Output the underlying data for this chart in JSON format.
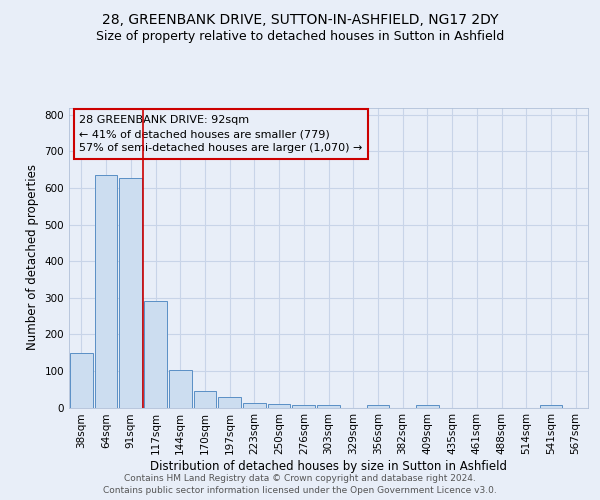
{
  "title1": "28, GREENBANK DRIVE, SUTTON-IN-ASHFIELD, NG17 2DY",
  "title2": "Size of property relative to detached houses in Sutton in Ashfield",
  "xlabel": "Distribution of detached houses by size in Sutton in Ashfield",
  "ylabel": "Number of detached properties",
  "categories": [
    "38sqm",
    "64sqm",
    "91sqm",
    "117sqm",
    "144sqm",
    "170sqm",
    "197sqm",
    "223sqm",
    "250sqm",
    "276sqm",
    "303sqm",
    "329sqm",
    "356sqm",
    "382sqm",
    "409sqm",
    "435sqm",
    "461sqm",
    "488sqm",
    "514sqm",
    "541sqm",
    "567sqm"
  ],
  "values": [
    150,
    635,
    628,
    290,
    103,
    45,
    30,
    13,
    10,
    8,
    8,
    0,
    8,
    0,
    8,
    0,
    0,
    0,
    0,
    8,
    0
  ],
  "bar_color": "#ccddf0",
  "bar_edge_color": "#5a8fc5",
  "grid_color": "#c8d4e8",
  "background_color": "#e8eef8",
  "annotation_text": "28 GREENBANK DRIVE: 92sqm\n← 41% of detached houses are smaller (779)\n57% of semi-detached houses are larger (1,070) →",
  "annotation_box_color": "#cc0000",
  "vline_color": "#cc0000",
  "vline_x": 2.48,
  "ylim": [
    0,
    820
  ],
  "yticks": [
    0,
    100,
    200,
    300,
    400,
    500,
    600,
    700,
    800
  ],
  "footer": "Contains HM Land Registry data © Crown copyright and database right 2024.\nContains public sector information licensed under the Open Government Licence v3.0.",
  "title1_fontsize": 10,
  "title2_fontsize": 9,
  "xlabel_fontsize": 8.5,
  "ylabel_fontsize": 8.5,
  "tick_fontsize": 7.5,
  "annotation_fontsize": 8,
  "footer_fontsize": 6.5
}
